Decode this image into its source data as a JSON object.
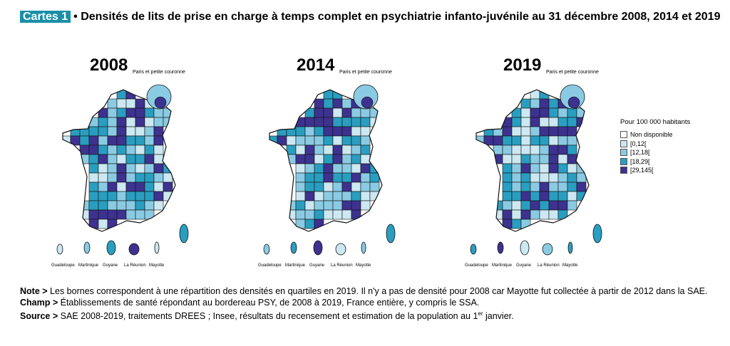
{
  "title": {
    "badge": "Cartes 1",
    "text": "• Densités de lits de prise en charge à temps complet en psychiatrie infanto-juvénile au 31 décembre 2008, 2014 et 2019"
  },
  "maps": [
    {
      "year": "2008",
      "inset_label": "Paris et petite couronne"
    },
    {
      "year": "2014",
      "inset_label": "Paris et petite couronne"
    },
    {
      "year": "2019",
      "inset_label": "Paris et petite couronne"
    }
  ],
  "dom_labels": [
    "Guadeloupe",
    "Martinique",
    "Guyane",
    "La Réunion",
    "Mayotte"
  ],
  "legend": {
    "title": "Pour 100 000 habitants",
    "items": [
      {
        "label": "Non disponible",
        "color": "#ffffff"
      },
      {
        "label": "[0,12[",
        "color": "#cce8f2"
      },
      {
        "label": "[12,18[",
        "color": "#8acbe3"
      },
      {
        "label": "[18,29[",
        "color": "#2a9ec0"
      },
      {
        "label": "[29,145[",
        "color": "#3d3290"
      }
    ]
  },
  "notes": {
    "note_label": "Note >",
    "note_text": "Les bornes correspondent à une répartition des densités en quartiles en 2019. Il n'y a pas de densité pour 2008 car Mayotte fut collectée à partir de 2012 dans la SAE.",
    "champ_label": "Champ >",
    "champ_text": "Établissements de santé répondant au bordereau PSY, de 2008 à 2019, France entière, y compris le SSA.",
    "source_label": "Source >",
    "source_text_before": "SAE 2008-2019, traitements DREES ; Insee, résultats du recensement et estimation de la population au 1",
    "source_sup": "er",
    "source_text_after": " janvier."
  }
}
